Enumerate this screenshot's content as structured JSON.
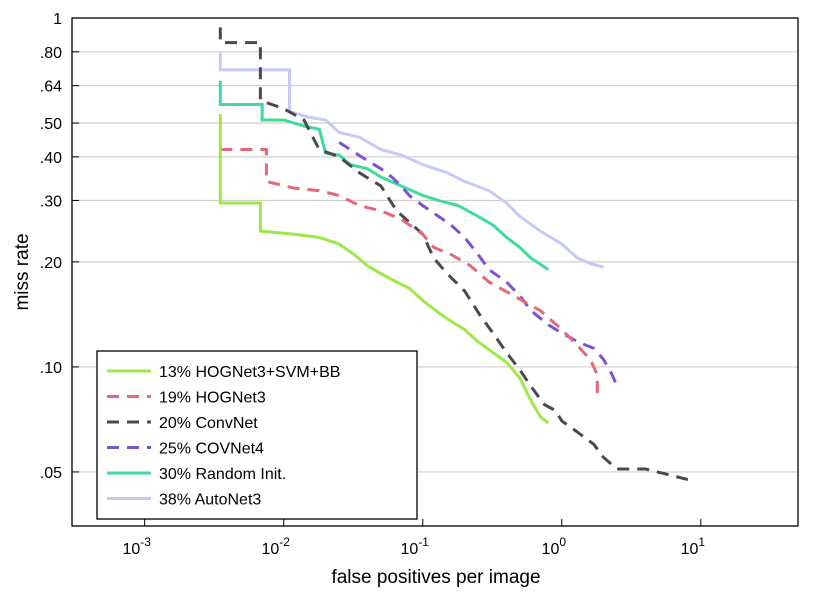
{
  "chart_data": {
    "type": "line",
    "title": "",
    "xlabel": "false positives per image",
    "ylabel": "miss rate",
    "xscale": "log",
    "yscale": "log",
    "xlim": [
      0.0003,
      50
    ],
    "ylim": [
      0.035,
      1
    ],
    "x_ticks": [
      {
        "value": 0.001,
        "base": "10",
        "exp": "-3"
      },
      {
        "value": 0.01,
        "base": "10",
        "exp": "-2"
      },
      {
        "value": 0.1,
        "base": "10",
        "exp": "-1"
      },
      {
        "value": 1,
        "base": "10",
        "exp": "0"
      },
      {
        "value": 10,
        "base": "10",
        "exp": "1"
      }
    ],
    "y_ticks": [
      {
        "value": 1.0,
        "label": "1"
      },
      {
        "value": 0.8,
        "label": ".80"
      },
      {
        "value": 0.64,
        "label": ".64"
      },
      {
        "value": 0.5,
        "label": ".50"
      },
      {
        "value": 0.4,
        "label": ".40"
      },
      {
        "value": 0.3,
        "label": ".30"
      },
      {
        "value": 0.2,
        "label": ".20"
      },
      {
        "value": 0.1,
        "label": ".10"
      },
      {
        "value": 0.05,
        "label": ".05"
      }
    ],
    "grid": "horizontal",
    "legend_position": "bottom-left",
    "series": [
      {
        "name": "13% HOGNet3+SVM+BB",
        "color": "#9ee84a",
        "dash": "solid",
        "points": [
          [
            0.0035,
            0.53
          ],
          [
            0.0035,
            0.295
          ],
          [
            0.0068,
            0.295
          ],
          [
            0.0068,
            0.245
          ],
          [
            0.012,
            0.24
          ],
          [
            0.018,
            0.235
          ],
          [
            0.025,
            0.225
          ],
          [
            0.032,
            0.21
          ],
          [
            0.04,
            0.195
          ],
          [
            0.05,
            0.185
          ],
          [
            0.065,
            0.175
          ],
          [
            0.08,
            0.168
          ],
          [
            0.1,
            0.155
          ],
          [
            0.13,
            0.143
          ],
          [
            0.16,
            0.135
          ],
          [
            0.2,
            0.128
          ],
          [
            0.25,
            0.118
          ],
          [
            0.32,
            0.11
          ],
          [
            0.4,
            0.103
          ],
          [
            0.5,
            0.093
          ],
          [
            0.6,
            0.08
          ],
          [
            0.7,
            0.072
          ],
          [
            0.8,
            0.069
          ]
        ]
      },
      {
        "name": "19% HOGNet3",
        "color": "#e5677a",
        "dash": "dashed",
        "points": [
          [
            0.0035,
            0.42
          ],
          [
            0.0075,
            0.42
          ],
          [
            0.0075,
            0.34
          ],
          [
            0.012,
            0.325
          ],
          [
            0.018,
            0.32
          ],
          [
            0.025,
            0.31
          ],
          [
            0.035,
            0.29
          ],
          [
            0.05,
            0.28
          ],
          [
            0.07,
            0.265
          ],
          [
            0.1,
            0.24
          ],
          [
            0.12,
            0.22
          ],
          [
            0.16,
            0.21
          ],
          [
            0.22,
            0.195
          ],
          [
            0.3,
            0.175
          ],
          [
            0.45,
            0.16
          ],
          [
            0.7,
            0.145
          ],
          [
            1.0,
            0.128
          ],
          [
            1.3,
            0.115
          ],
          [
            1.6,
            0.105
          ],
          [
            1.8,
            0.095
          ],
          [
            1.8,
            0.082
          ]
        ]
      },
      {
        "name": "20% ConvNet",
        "color": "#4a4a4a",
        "dash": "dashed",
        "points": [
          [
            0.0035,
            0.94
          ],
          [
            0.0035,
            0.85
          ],
          [
            0.0068,
            0.85
          ],
          [
            0.0068,
            0.58
          ],
          [
            0.01,
            0.55
          ],
          [
            0.014,
            0.51
          ],
          [
            0.018,
            0.42
          ],
          [
            0.025,
            0.4
          ],
          [
            0.035,
            0.36
          ],
          [
            0.05,
            0.33
          ],
          [
            0.065,
            0.28
          ],
          [
            0.08,
            0.26
          ],
          [
            0.1,
            0.24
          ],
          [
            0.12,
            0.205
          ],
          [
            0.15,
            0.185
          ],
          [
            0.2,
            0.165
          ],
          [
            0.26,
            0.14
          ],
          [
            0.32,
            0.125
          ],
          [
            0.4,
            0.11
          ],
          [
            0.5,
            0.098
          ],
          [
            0.6,
            0.088
          ],
          [
            0.75,
            0.078
          ],
          [
            0.9,
            0.075
          ],
          [
            1.0,
            0.07
          ],
          [
            1.3,
            0.065
          ],
          [
            1.7,
            0.06
          ],
          [
            2.0,
            0.055
          ],
          [
            2.5,
            0.051
          ],
          [
            4,
            0.051
          ],
          [
            6,
            0.049
          ],
          [
            9,
            0.047
          ]
        ]
      },
      {
        "name": "25% COVNet4",
        "color": "#7b52d6",
        "dash": "dashed",
        "points": [
          [
            0.025,
            0.44
          ],
          [
            0.03,
            0.42
          ],
          [
            0.04,
            0.39
          ],
          [
            0.05,
            0.37
          ],
          [
            0.06,
            0.35
          ],
          [
            0.07,
            0.33
          ],
          [
            0.08,
            0.31
          ],
          [
            0.1,
            0.29
          ],
          [
            0.13,
            0.27
          ],
          [
            0.16,
            0.255
          ],
          [
            0.2,
            0.235
          ],
          [
            0.25,
            0.21
          ],
          [
            0.3,
            0.19
          ],
          [
            0.4,
            0.175
          ],
          [
            0.5,
            0.16
          ],
          [
            0.6,
            0.145
          ],
          [
            0.8,
            0.132
          ],
          [
            1.0,
            0.125
          ],
          [
            1.3,
            0.118
          ],
          [
            1.7,
            0.113
          ],
          [
            2.0,
            0.105
          ],
          [
            2.3,
            0.095
          ],
          [
            2.5,
            0.088
          ]
        ]
      },
      {
        "name": "30% Random Init.",
        "color": "#3ddc9a",
        "dash": "solid",
        "points": [
          [
            0.0035,
            0.66
          ],
          [
            0.0035,
            0.565
          ],
          [
            0.007,
            0.565
          ],
          [
            0.007,
            0.51
          ],
          [
            0.01,
            0.51
          ],
          [
            0.014,
            0.49
          ],
          [
            0.018,
            0.48
          ],
          [
            0.02,
            0.41
          ],
          [
            0.025,
            0.405
          ],
          [
            0.03,
            0.38
          ],
          [
            0.04,
            0.37
          ],
          [
            0.05,
            0.35
          ],
          [
            0.07,
            0.33
          ],
          [
            0.1,
            0.31
          ],
          [
            0.13,
            0.3
          ],
          [
            0.18,
            0.29
          ],
          [
            0.25,
            0.27
          ],
          [
            0.32,
            0.255
          ],
          [
            0.4,
            0.235
          ],
          [
            0.5,
            0.22
          ],
          [
            0.6,
            0.205
          ],
          [
            0.7,
            0.197
          ],
          [
            0.8,
            0.19
          ]
        ]
      },
      {
        "name": "38% AutoNet3",
        "color": "#c6cbf5",
        "dash": "solid",
        "points": [
          [
            0.0035,
            0.8
          ],
          [
            0.0035,
            0.71
          ],
          [
            0.011,
            0.71
          ],
          [
            0.011,
            0.54
          ],
          [
            0.015,
            0.52
          ],
          [
            0.02,
            0.51
          ],
          [
            0.025,
            0.47
          ],
          [
            0.035,
            0.455
          ],
          [
            0.05,
            0.42
          ],
          [
            0.07,
            0.405
          ],
          [
            0.1,
            0.38
          ],
          [
            0.15,
            0.36
          ],
          [
            0.2,
            0.34
          ],
          [
            0.3,
            0.32
          ],
          [
            0.4,
            0.295
          ],
          [
            0.5,
            0.27
          ],
          [
            0.7,
            0.245
          ],
          [
            1.0,
            0.225
          ],
          [
            1.3,
            0.205
          ],
          [
            1.6,
            0.198
          ],
          [
            2.0,
            0.193
          ]
        ]
      }
    ]
  }
}
